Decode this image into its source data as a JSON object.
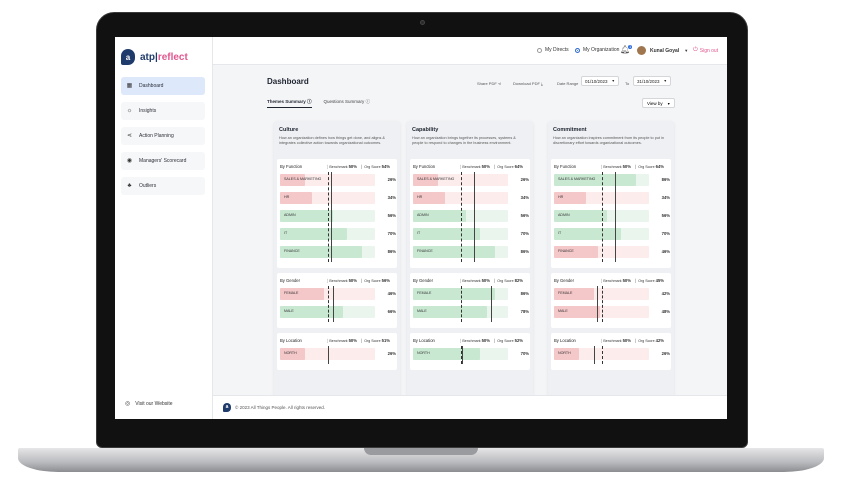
{
  "brand": {
    "mark": "a",
    "name_a": "atp",
    "sep": "|",
    "name_b": "reflect"
  },
  "sidebar": {
    "items": [
      {
        "label": "Dashboard",
        "icon": "grid-icon",
        "active": true
      },
      {
        "label": "Insights",
        "icon": "bulb-icon",
        "active": false
      },
      {
        "label": "Action Planning",
        "icon": "share-icon",
        "active": false
      },
      {
        "label": "Managers' Scorecard",
        "icon": "scorecard-icon",
        "active": false
      },
      {
        "label": "Outliers",
        "icon": "people-icon",
        "active": false
      }
    ],
    "visit_label": "Visit our Website"
  },
  "topbar": {
    "my_directs": "My Directs",
    "my_organization": "My Organization",
    "notification_count": "1",
    "user_name": "Kunal Goyal",
    "sign_out": "Sign out"
  },
  "page": {
    "title": "Dashboard",
    "share_pdf": "Share PDF",
    "download_pdf": "Download PDF",
    "date_range_label": "Date Range",
    "date_from": "01/10/2023",
    "to_label": "To",
    "date_to": "31/10/2023",
    "tabs": [
      "Themes Summary",
      "Questions Summary"
    ],
    "view_by": "View by"
  },
  "benchmark_label": "Benchmark",
  "org_label": "Org Score",
  "panels": [
    {
      "title": "Culture",
      "description": "How an organization defines how things get done, and aligns & integrates collective action towards organizational outcomes.",
      "sections": [
        {
          "title": "By Function",
          "benchmark": "50%",
          "org": "54%",
          "rows": [
            {
              "label": "SALES & MARKETING",
              "value": 26,
              "display": "26%",
              "status": "low"
            },
            {
              "label": "HR",
              "value": 34,
              "display": "34%",
              "status": "low"
            },
            {
              "label": "ADMIN",
              "value": 56,
              "display": "56%",
              "status": "high"
            },
            {
              "label": "IT",
              "value": 70,
              "display": "70%",
              "status": "high"
            },
            {
              "label": "FINANCE",
              "value": 86,
              "display": "86%",
              "status": "high"
            }
          ]
        },
        {
          "title": "By Gender",
          "benchmark": "50%",
          "org": "56%",
          "rows": [
            {
              "label": "FEMALE",
              "value": 46,
              "display": "46%",
              "status": "low"
            },
            {
              "label": "MALE",
              "value": 66,
              "display": "66%",
              "status": "high"
            }
          ]
        },
        {
          "title": "By Location",
          "benchmark": "50%",
          "org": "51%",
          "rows": [
            {
              "label": "NORTH",
              "value": 26,
              "display": "26%",
              "status": "low"
            }
          ]
        }
      ]
    },
    {
      "title": "Capability",
      "description": "How an organization brings together its processes, systems & people to respond to changes in the business environment.",
      "sections": [
        {
          "title": "By Function",
          "benchmark": "50%",
          "org": "64%",
          "rows": [
            {
              "label": "SALES & MARKETING",
              "value": 26,
              "display": "26%",
              "status": "low"
            },
            {
              "label": "HR",
              "value": 34,
              "display": "34%",
              "status": "low"
            },
            {
              "label": "ADMIN",
              "value": 56,
              "display": "56%",
              "status": "high"
            },
            {
              "label": "IT",
              "value": 70,
              "display": "70%",
              "status": "high"
            },
            {
              "label": "FINANCE",
              "value": 86,
              "display": "86%",
              "status": "high"
            }
          ]
        },
        {
          "title": "By Gender",
          "benchmark": "50%",
          "org": "82%",
          "rows": [
            {
              "label": "FEMALE",
              "value": 86,
              "display": "86%",
              "status": "high"
            },
            {
              "label": "MALE",
              "value": 78,
              "display": "78%",
              "status": "high"
            }
          ]
        },
        {
          "title": "By Location",
          "benchmark": "50%",
          "org": "52%",
          "rows": [
            {
              "label": "NORTH",
              "value": 70,
              "display": "70%",
              "status": "high"
            }
          ]
        }
      ]
    },
    {
      "title": "Commitment",
      "description": "How an organization inspires commitment from its people to put in discretionary effort towards organizational outcomes.",
      "sections": [
        {
          "title": "By Function",
          "benchmark": "50%",
          "org": "64%",
          "rows": [
            {
              "label": "SALES & MARKETING",
              "value": 86,
              "display": "86%",
              "status": "high"
            },
            {
              "label": "HR",
              "value": 34,
              "display": "34%",
              "status": "low"
            },
            {
              "label": "ADMIN",
              "value": 56,
              "display": "56%",
              "status": "high"
            },
            {
              "label": "IT",
              "value": 70,
              "display": "70%",
              "status": "high"
            },
            {
              "label": "FINANCE",
              "value": 46,
              "display": "46%",
              "status": "low"
            }
          ]
        },
        {
          "title": "By Gender",
          "benchmark": "50%",
          "org": "45%",
          "rows": [
            {
              "label": "FEMALE",
              "value": 42,
              "display": "42%",
              "status": "low"
            },
            {
              "label": "MALE",
              "value": 48,
              "display": "48%",
              "status": "low"
            }
          ]
        },
        {
          "title": "By Location",
          "benchmark": "50%",
          "org": "42%",
          "rows": [
            {
              "label": "NORTH",
              "value": 26,
              "display": "26%",
              "status": "low"
            }
          ]
        }
      ]
    }
  ],
  "colors": {
    "high_fill": "#c9e8d2",
    "high_track": "#eaf6ed",
    "low_fill": "#f4c7c9",
    "low_track": "#fcecec",
    "accent": "#2e6bd6",
    "brand": "#1f3b6b",
    "pink": "#e0578f"
  },
  "footer": {
    "text": "© 2023 All Things People. All rights reserved."
  }
}
